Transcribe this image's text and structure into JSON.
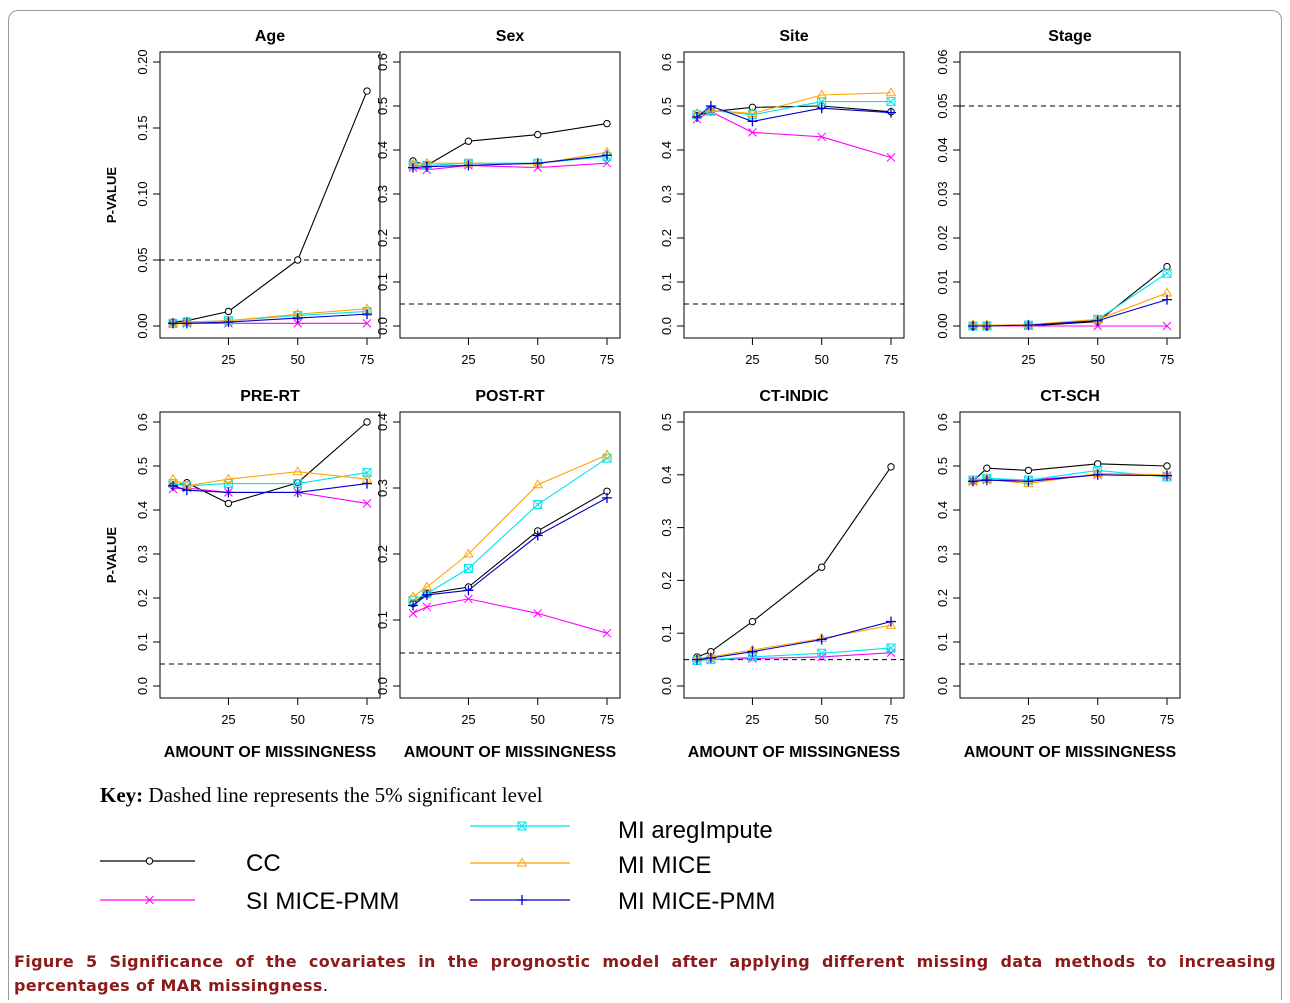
{
  "chart_data": [
    {
      "type": "line",
      "title": "Age",
      "ylabel": "P-VALUE",
      "xlabel": "",
      "x": [
        5,
        10,
        25,
        50,
        75
      ],
      "yticks": [
        "0.00",
        "0.05",
        "0.10",
        "0.15",
        "0.20"
      ],
      "ylim": [
        0,
        0.2
      ],
      "reference_line": 0.05,
      "series": [
        {
          "name": "CC",
          "values": [
            0.003,
            0.004,
            0.011,
            0.05,
            0.178
          ]
        },
        {
          "name": "SI MICE-PMM",
          "values": [
            0.002,
            0.002,
            0.002,
            0.002,
            0.002
          ]
        },
        {
          "name": "MI aregImpute",
          "values": [
            0.002,
            0.003,
            0.004,
            0.008,
            0.011
          ]
        },
        {
          "name": "MI MICE",
          "values": [
            0.002,
            0.003,
            0.004,
            0.009,
            0.013
          ]
        },
        {
          "name": "MI MICE-PMM",
          "values": [
            0.002,
            0.002,
            0.003,
            0.006,
            0.009
          ]
        }
      ]
    },
    {
      "type": "line",
      "title": "Sex",
      "ylabel": "",
      "xlabel": "",
      "x": [
        5,
        10,
        25,
        50,
        75
      ],
      "yticks": [
        "0.0",
        "0.1",
        "0.2",
        "0.3",
        "0.4",
        "0.5",
        "0.6"
      ],
      "ylim": [
        0,
        0.6
      ],
      "reference_line": 0.05,
      "series": [
        {
          "name": "CC",
          "values": [
            0.375,
            0.365,
            0.42,
            0.435,
            0.46
          ]
        },
        {
          "name": "SI MICE-PMM",
          "values": [
            0.36,
            0.355,
            0.365,
            0.36,
            0.37
          ]
        },
        {
          "name": "MI aregImpute",
          "values": [
            0.365,
            0.365,
            0.37,
            0.37,
            0.385
          ]
        },
        {
          "name": "MI MICE",
          "values": [
            0.368,
            0.37,
            0.37,
            0.368,
            0.395
          ]
        },
        {
          "name": "MI MICE-PMM",
          "values": [
            0.36,
            0.362,
            0.365,
            0.37,
            0.388
          ]
        }
      ]
    },
    {
      "type": "line",
      "title": "Site",
      "ylabel": "",
      "xlabel": "",
      "x": [
        5,
        10,
        25,
        50,
        75
      ],
      "yticks": [
        "0.0",
        "0.1",
        "0.2",
        "0.3",
        "0.4",
        "0.5",
        "0.6"
      ],
      "ylim": [
        0,
        0.6
      ],
      "reference_line": 0.05,
      "series": [
        {
          "name": "CC",
          "values": [
            0.478,
            0.487,
            0.497,
            0.5,
            0.487
          ]
        },
        {
          "name": "SI MICE-PMM",
          "values": [
            0.47,
            0.487,
            0.44,
            0.43,
            0.383
          ]
        },
        {
          "name": "MI aregImpute",
          "values": [
            0.48,
            0.49,
            0.48,
            0.51,
            0.51
          ]
        },
        {
          "name": "MI MICE",
          "values": [
            0.483,
            0.49,
            0.483,
            0.525,
            0.53
          ]
        },
        {
          "name": "MI MICE-PMM",
          "values": [
            0.475,
            0.5,
            0.465,
            0.495,
            0.485
          ]
        }
      ]
    },
    {
      "type": "line",
      "title": "Stage",
      "ylabel": "",
      "xlabel": "",
      "x": [
        5,
        10,
        25,
        50,
        75
      ],
      "yticks": [
        "0.00",
        "0.01",
        "0.02",
        "0.03",
        "0.04",
        "0.05",
        "0.06"
      ],
      "ylim": [
        0,
        0.06
      ],
      "reference_line": 0.05,
      "series": [
        {
          "name": "CC",
          "values": [
            0.0,
            0.0,
            0.0,
            0.001,
            0.0135
          ]
        },
        {
          "name": "SI MICE-PMM",
          "values": [
            0.0,
            0.0,
            0.0,
            0.0,
            0.0
          ]
        },
        {
          "name": "MI aregImpute",
          "values": [
            0.0,
            0.0,
            0.0002,
            0.0015,
            0.012
          ]
        },
        {
          "name": "MI MICE",
          "values": [
            0.0003,
            0.0002,
            0.0003,
            0.0015,
            0.0075
          ]
        },
        {
          "name": "MI MICE-PMM",
          "values": [
            0.0,
            0.0,
            0.0002,
            0.0012,
            0.006
          ]
        }
      ]
    },
    {
      "type": "line",
      "title": "PRE-RT",
      "ylabel": "P-VALUE",
      "xlabel": "AMOUNT OF MISSINGNESS",
      "x": [
        5,
        10,
        25,
        50,
        75
      ],
      "yticks": [
        "0.0",
        "0.1",
        "0.2",
        "0.3",
        "0.4",
        "0.5",
        "0.6"
      ],
      "ylim": [
        0,
        0.6
      ],
      "reference_line": 0.05,
      "series": [
        {
          "name": "CC",
          "values": [
            0.455,
            0.462,
            0.415,
            0.462,
            0.6
          ]
        },
        {
          "name": "SI MICE-PMM",
          "values": [
            0.448,
            0.45,
            0.44,
            0.44,
            0.415
          ]
        },
        {
          "name": "MI aregImpute",
          "values": [
            0.46,
            0.455,
            0.46,
            0.46,
            0.485
          ]
        },
        {
          "name": "MI MICE",
          "values": [
            0.47,
            0.455,
            0.47,
            0.487,
            0.47
          ]
        },
        {
          "name": "MI MICE-PMM",
          "values": [
            0.455,
            0.445,
            0.44,
            0.44,
            0.46
          ]
        }
      ]
    },
    {
      "type": "line",
      "title": "POST-RT",
      "ylabel": "",
      "xlabel": "AMOUNT OF MISSINGNESS",
      "x": [
        5,
        10,
        25,
        50,
        75
      ],
      "yticks": [
        "0.0",
        "0.1",
        "0.2",
        "0.3",
        "0.4"
      ],
      "ylim": [
        0,
        0.4
      ],
      "reference_line": 0.05,
      "series": [
        {
          "name": "CC",
          "values": [
            0.125,
            0.14,
            0.15,
            0.235,
            0.295
          ]
        },
        {
          "name": "SI MICE-PMM",
          "values": [
            0.11,
            0.12,
            0.132,
            0.11,
            0.08
          ]
        },
        {
          "name": "MI aregImpute",
          "values": [
            0.13,
            0.14,
            0.178,
            0.275,
            0.345
          ]
        },
        {
          "name": "MI MICE",
          "values": [
            0.135,
            0.15,
            0.2,
            0.305,
            0.35
          ]
        },
        {
          "name": "MI MICE-PMM",
          "values": [
            0.122,
            0.138,
            0.145,
            0.228,
            0.285
          ]
        }
      ]
    },
    {
      "type": "line",
      "title": "CT-INDIC",
      "ylabel": "",
      "xlabel": "AMOUNT OF MISSINGNESS",
      "x": [
        5,
        10,
        25,
        50,
        75
      ],
      "yticks": [
        "0.0",
        "0.1",
        "0.2",
        "0.3",
        "0.4",
        "0.5"
      ],
      "ylim": [
        0,
        0.5
      ],
      "reference_line": 0.05,
      "series": [
        {
          "name": "CC",
          "values": [
            0.055,
            0.065,
            0.122,
            0.225,
            0.415
          ]
        },
        {
          "name": "SI MICE-PMM",
          "values": [
            0.048,
            0.05,
            0.052,
            0.055,
            0.063
          ]
        },
        {
          "name": "MI aregImpute",
          "values": [
            0.048,
            0.05,
            0.055,
            0.062,
            0.072
          ]
        },
        {
          "name": "MI MICE",
          "values": [
            0.052,
            0.055,
            0.068,
            0.09,
            0.115
          ]
        },
        {
          "name": "MI MICE-PMM",
          "values": [
            0.05,
            0.053,
            0.065,
            0.088,
            0.122
          ]
        }
      ]
    },
    {
      "type": "line",
      "title": "CT-SCH",
      "ylabel": "",
      "xlabel": "AMOUNT OF MISSINGNESS",
      "x": [
        5,
        10,
        25,
        50,
        75
      ],
      "yticks": [
        "0.0",
        "0.1",
        "0.2",
        "0.3",
        "0.4",
        "0.5",
        "0.6"
      ],
      "ylim": [
        0,
        0.6
      ],
      "reference_line": 0.05,
      "series": [
        {
          "name": "CC",
          "values": [
            0.465,
            0.495,
            0.49,
            0.505,
            0.5
          ]
        },
        {
          "name": "SI MICE-PMM",
          "values": [
            0.465,
            0.468,
            0.468,
            0.48,
            0.478
          ]
        },
        {
          "name": "MI aregImpute",
          "values": [
            0.468,
            0.472,
            0.468,
            0.49,
            0.475
          ]
        },
        {
          "name": "MI MICE",
          "values": [
            0.465,
            0.47,
            0.46,
            0.483,
            0.48
          ]
        },
        {
          "name": "MI MICE-PMM",
          "values": [
            0.465,
            0.468,
            0.465,
            0.48,
            0.478
          ]
        }
      ]
    }
  ],
  "xticks": [
    "25",
    "50",
    "75"
  ],
  "styles": {
    "CC": {
      "color": "#000000",
      "marker": "circle"
    },
    "SI MICE-PMM": {
      "color": "#ff00ff",
      "marker": "x"
    },
    "MI aregImpute": {
      "color": "#00e5ee",
      "marker": "boxx"
    },
    "MI MICE": {
      "color": "#ffa500",
      "marker": "triangle"
    },
    "MI MICE-PMM": {
      "color": "#0000cd",
      "marker": "plus"
    }
  },
  "key": {
    "bold": "Key:",
    "text": " Dashed line represents the 5% significant level"
  },
  "legend": {
    "items": [
      "CC",
      "SI MICE-PMM",
      "MI aregImpute",
      "MI MICE",
      "MI MICE-PMM"
    ]
  },
  "caption": {
    "title": "Figure 5 Significance of the covariates in the prognostic model after applying different missing data methods to increasing percentages of MAR missingness",
    "end": "."
  }
}
